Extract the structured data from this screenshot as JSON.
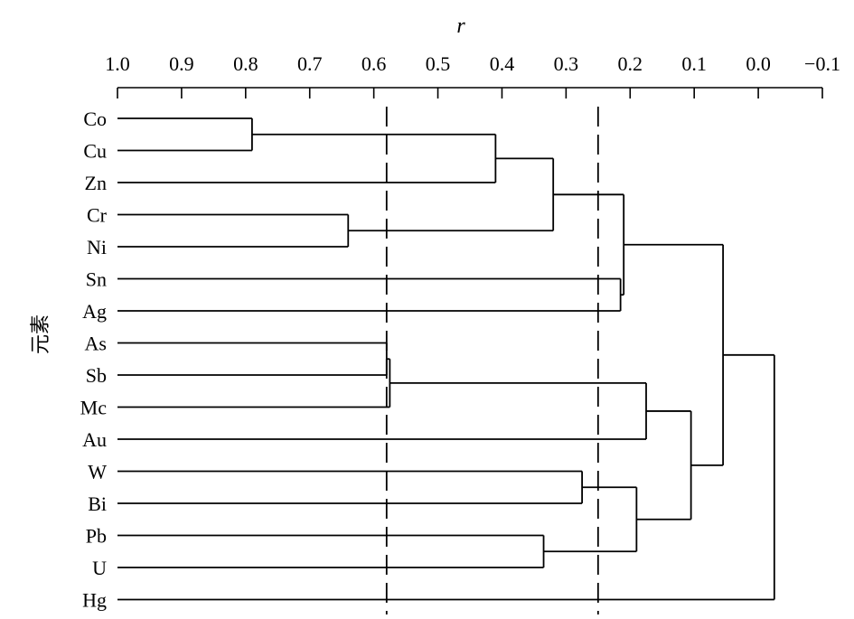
{
  "chart_data": {
    "type": "dendrogram",
    "xlabel": "r",
    "ylabel": "元素",
    "xlim": [
      1.0,
      -0.1
    ],
    "x_ticks": [
      "1.0",
      "0.9",
      "0.8",
      "0.7",
      "0.6",
      "0.5",
      "0.4",
      "0.3",
      "0.2",
      "0.1",
      "0.0",
      "−0.1"
    ],
    "x_tick_values": [
      1.0,
      0.9,
      0.8,
      0.7,
      0.6,
      0.5,
      0.4,
      0.3,
      0.2,
      0.1,
      0.0,
      -0.1
    ],
    "leaves": [
      "Co",
      "Cu",
      "Zn",
      "Cr",
      "Ni",
      "Sn",
      "Ag",
      "As",
      "Sb",
      "Mc",
      "Au",
      "W",
      "Bi",
      "Pb",
      "U",
      "Hg"
    ],
    "merges": [
      {
        "items": [
          "Co",
          "Cu"
        ],
        "r": 0.79
      },
      {
        "items": [
          "Co-Cu",
          "Zn"
        ],
        "r": 0.41
      },
      {
        "items": [
          "Cr",
          "Ni"
        ],
        "r": 0.64
      },
      {
        "items": [
          "Co-Cu-Zn",
          "Cr-Ni"
        ],
        "r": 0.32
      },
      {
        "items": [
          "Sn",
          "Ag"
        ],
        "r": 0.215
      },
      {
        "items": [
          "Co-Cu-Zn-Cr-Ni",
          "Sn-Ag"
        ],
        "r": 0.21
      },
      {
        "items": [
          "As",
          "Sb"
        ],
        "r": 0.58
      },
      {
        "items": [
          "As-Sb",
          "Mc"
        ],
        "r": 0.575
      },
      {
        "items": [
          "As-Sb-Mc",
          "Au"
        ],
        "r": 0.175
      },
      {
        "items": [
          "W",
          "Bi"
        ],
        "r": 0.275
      },
      {
        "items": [
          "Pb",
          "U"
        ],
        "r": 0.335
      },
      {
        "items": [
          "W-Bi",
          "Pb-U"
        ],
        "r": 0.19
      },
      {
        "items": [
          "As-Sb-Mc-Au",
          "W-Bi-Pb-U"
        ],
        "r": 0.105
      },
      {
        "items": [
          "Co-Cu-Zn-Cr-Ni-Sn-Ag",
          "As-Sb-Mc-Au-W-Bi-Pb-U"
        ],
        "r": 0.055
      },
      {
        "items": [
          "all-but-Hg",
          "Hg"
        ],
        "r": -0.025
      }
    ],
    "reference_lines": [
      0.58,
      0.25
    ],
    "grid": false
  }
}
